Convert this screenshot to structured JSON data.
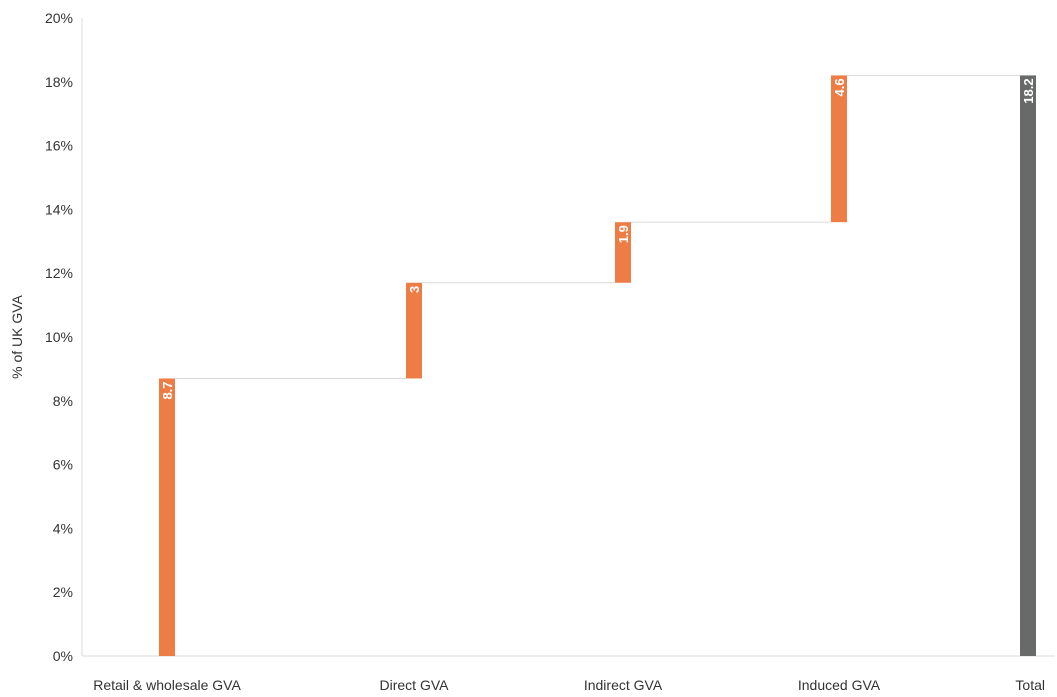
{
  "chart_data": {
    "type": "bar",
    "subtype": "waterfall",
    "categories": [
      "Retail & wholesale GVA",
      "Direct GVA",
      "Indirect GVA",
      "Induced GVA",
      "Total"
    ],
    "values": [
      8.7,
      3,
      1.9,
      4.6,
      18.2
    ],
    "data_labels": [
      "8.7",
      "3",
      "1.9",
      "4.6",
      "18.2"
    ],
    "ylabel": "% of UK GVA",
    "ylim": [
      0,
      20
    ],
    "yticks": [
      0,
      2,
      4,
      6,
      8,
      10,
      12,
      14,
      16,
      18,
      20
    ],
    "ytick_labels": [
      "0%",
      "2%",
      "4%",
      "6%",
      "8%",
      "10%",
      "12%",
      "14%",
      "16%",
      "18%",
      "20%"
    ],
    "grid": false,
    "legend": "none",
    "colors": {
      "step": "#ED7D45",
      "total": "#676A68",
      "connector": "#D9D9D9",
      "axis": "#D9D9D9"
    }
  }
}
